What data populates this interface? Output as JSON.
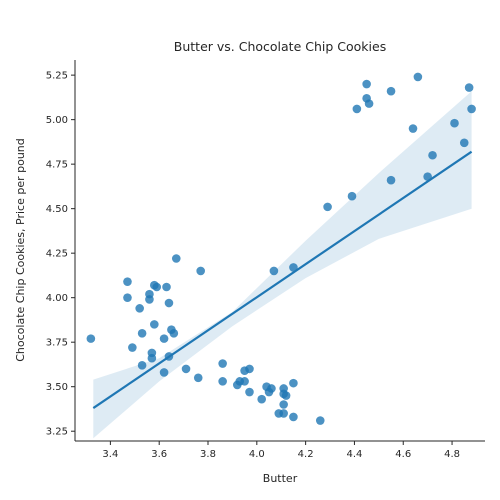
{
  "chart_data": {
    "type": "scatter",
    "title": "Butter vs. Chocolate Chip Cookies",
    "xlabel": "Butter",
    "ylabel": "Chocolate Chip Cookies, Price per pound",
    "xlim": [
      3.255,
      4.935
    ],
    "ylim": [
      3.195,
      5.335
    ],
    "xticks": [
      "3.4",
      "3.6",
      "3.8",
      "4.0",
      "4.2",
      "4.4",
      "4.6",
      "4.8"
    ],
    "yticks": [
      "3.25",
      "3.50",
      "3.75",
      "4.00",
      "4.25",
      "4.50",
      "4.75",
      "5.00",
      "5.25"
    ],
    "grid": false,
    "point_color": "#1f77b4",
    "regression": {
      "line": [
        [
          3.33,
          3.38
        ],
        [
          4.88,
          4.82
        ]
      ],
      "ci_upper": [
        [
          3.33,
          3.54
        ],
        [
          3.6,
          3.66
        ],
        [
          3.9,
          3.92
        ],
        [
          4.2,
          4.32
        ],
        [
          4.5,
          4.7
        ],
        [
          4.88,
          5.16
        ]
      ],
      "ci_lower": [
        [
          3.33,
          3.21
        ],
        [
          3.6,
          3.53
        ],
        [
          3.9,
          3.84
        ],
        [
          4.2,
          4.11
        ],
        [
          4.5,
          4.33
        ],
        [
          4.88,
          4.5
        ]
      ]
    },
    "points": [
      [
        3.32,
        3.77
      ],
      [
        3.47,
        4.09
      ],
      [
        3.47,
        4.0
      ],
      [
        3.49,
        3.72
      ],
      [
        3.52,
        3.94
      ],
      [
        3.53,
        3.8
      ],
      [
        3.53,
        3.62
      ],
      [
        3.56,
        4.02
      ],
      [
        3.56,
        3.99
      ],
      [
        3.57,
        3.66
      ],
      [
        3.57,
        3.69
      ],
      [
        3.58,
        3.85
      ],
      [
        3.58,
        4.07
      ],
      [
        3.59,
        4.06
      ],
      [
        3.62,
        3.77
      ],
      [
        3.62,
        3.58
      ],
      [
        3.63,
        4.06
      ],
      [
        3.64,
        3.97
      ],
      [
        3.64,
        3.67
      ],
      [
        3.65,
        3.82
      ],
      [
        3.66,
        3.8
      ],
      [
        3.67,
        4.22
      ],
      [
        3.71,
        3.6
      ],
      [
        3.76,
        3.55
      ],
      [
        3.77,
        4.15
      ],
      [
        3.86,
        3.63
      ],
      [
        3.86,
        3.53
      ],
      [
        3.92,
        3.51
      ],
      [
        3.93,
        3.53
      ],
      [
        3.95,
        3.53
      ],
      [
        3.95,
        3.59
      ],
      [
        3.97,
        3.6
      ],
      [
        3.97,
        3.47
      ],
      [
        4.02,
        3.43
      ],
      [
        4.04,
        3.5
      ],
      [
        4.05,
        3.47
      ],
      [
        4.06,
        3.49
      ],
      [
        4.07,
        4.15
      ],
      [
        4.09,
        3.35
      ],
      [
        4.11,
        3.35
      ],
      [
        4.11,
        3.49
      ],
      [
        4.11,
        3.46
      ],
      [
        4.11,
        3.4
      ],
      [
        4.12,
        3.45
      ],
      [
        4.15,
        3.52
      ],
      [
        4.15,
        4.17
      ],
      [
        4.15,
        3.33
      ],
      [
        4.26,
        3.31
      ],
      [
        4.29,
        4.51
      ],
      [
        4.39,
        4.57
      ],
      [
        4.41,
        5.06
      ],
      [
        4.45,
        5.2
      ],
      [
        4.45,
        5.12
      ],
      [
        4.46,
        5.09
      ],
      [
        4.55,
        4.66
      ],
      [
        4.55,
        5.16
      ],
      [
        4.64,
        4.95
      ],
      [
        4.66,
        5.24
      ],
      [
        4.7,
        4.68
      ],
      [
        4.72,
        4.8
      ],
      [
        4.81,
        4.98
      ],
      [
        4.85,
        4.87
      ],
      [
        4.87,
        5.18
      ],
      [
        4.88,
        5.06
      ]
    ]
  }
}
